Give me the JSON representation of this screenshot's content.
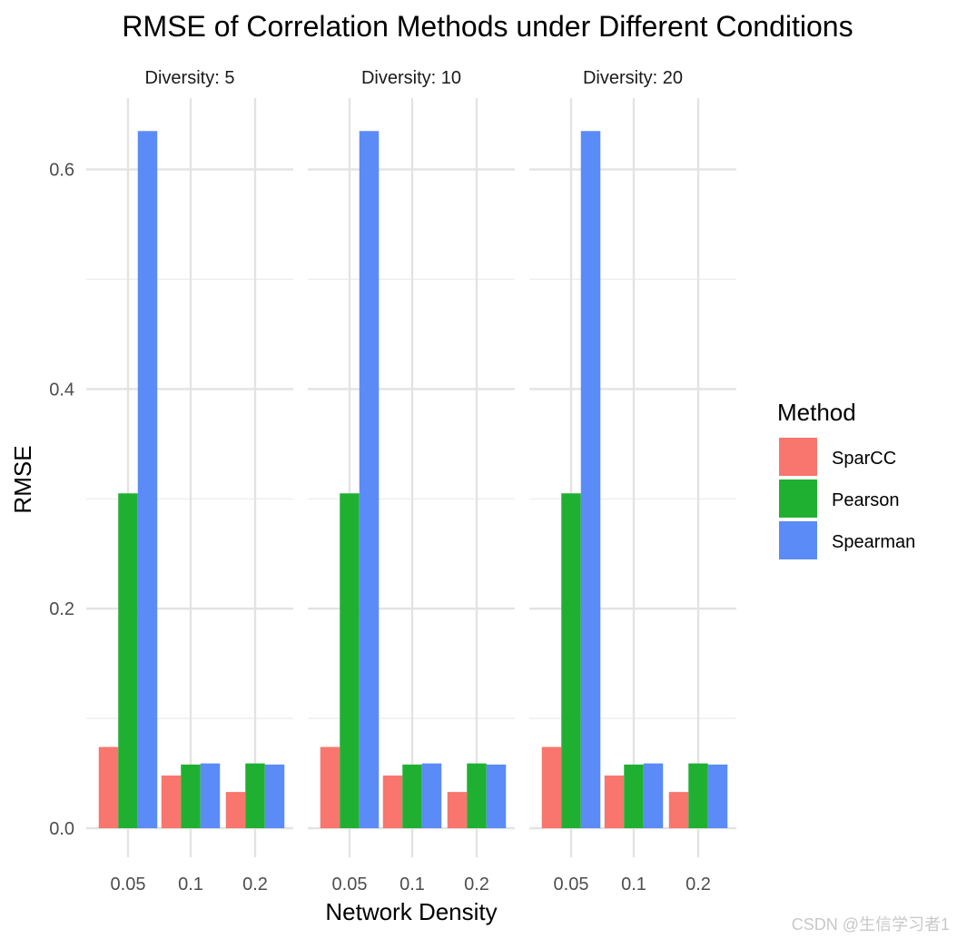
{
  "chart_data": {
    "type": "bar",
    "title": "RMSE of Correlation Methods under Different Conditions",
    "xlabel": "Network Density",
    "ylabel": "RMSE",
    "ylim": [
      0,
      0.66
    ],
    "yticks": [
      "0.0",
      "0.2",
      "0.4",
      "0.6"
    ],
    "grid": true,
    "legend": {
      "title": "Method",
      "position": "right"
    },
    "facet_label_prefix": "Diversity: ",
    "facets": [
      "5",
      "10",
      "20"
    ],
    "categories": [
      "0.05",
      "0.1",
      "0.2"
    ],
    "series": [
      {
        "name": "SparCC",
        "color": "#F8766D",
        "values": [
          0.074,
          0.048,
          0.033
        ]
      },
      {
        "name": "Pearson",
        "color": "#1FB032",
        "values": [
          0.305,
          0.058,
          0.059
        ]
      },
      {
        "name": "Spearman",
        "color": "#5B8BF7",
        "values": [
          0.635,
          0.059,
          0.058
        ]
      }
    ]
  },
  "watermark": "CSDN @生信学习者1"
}
